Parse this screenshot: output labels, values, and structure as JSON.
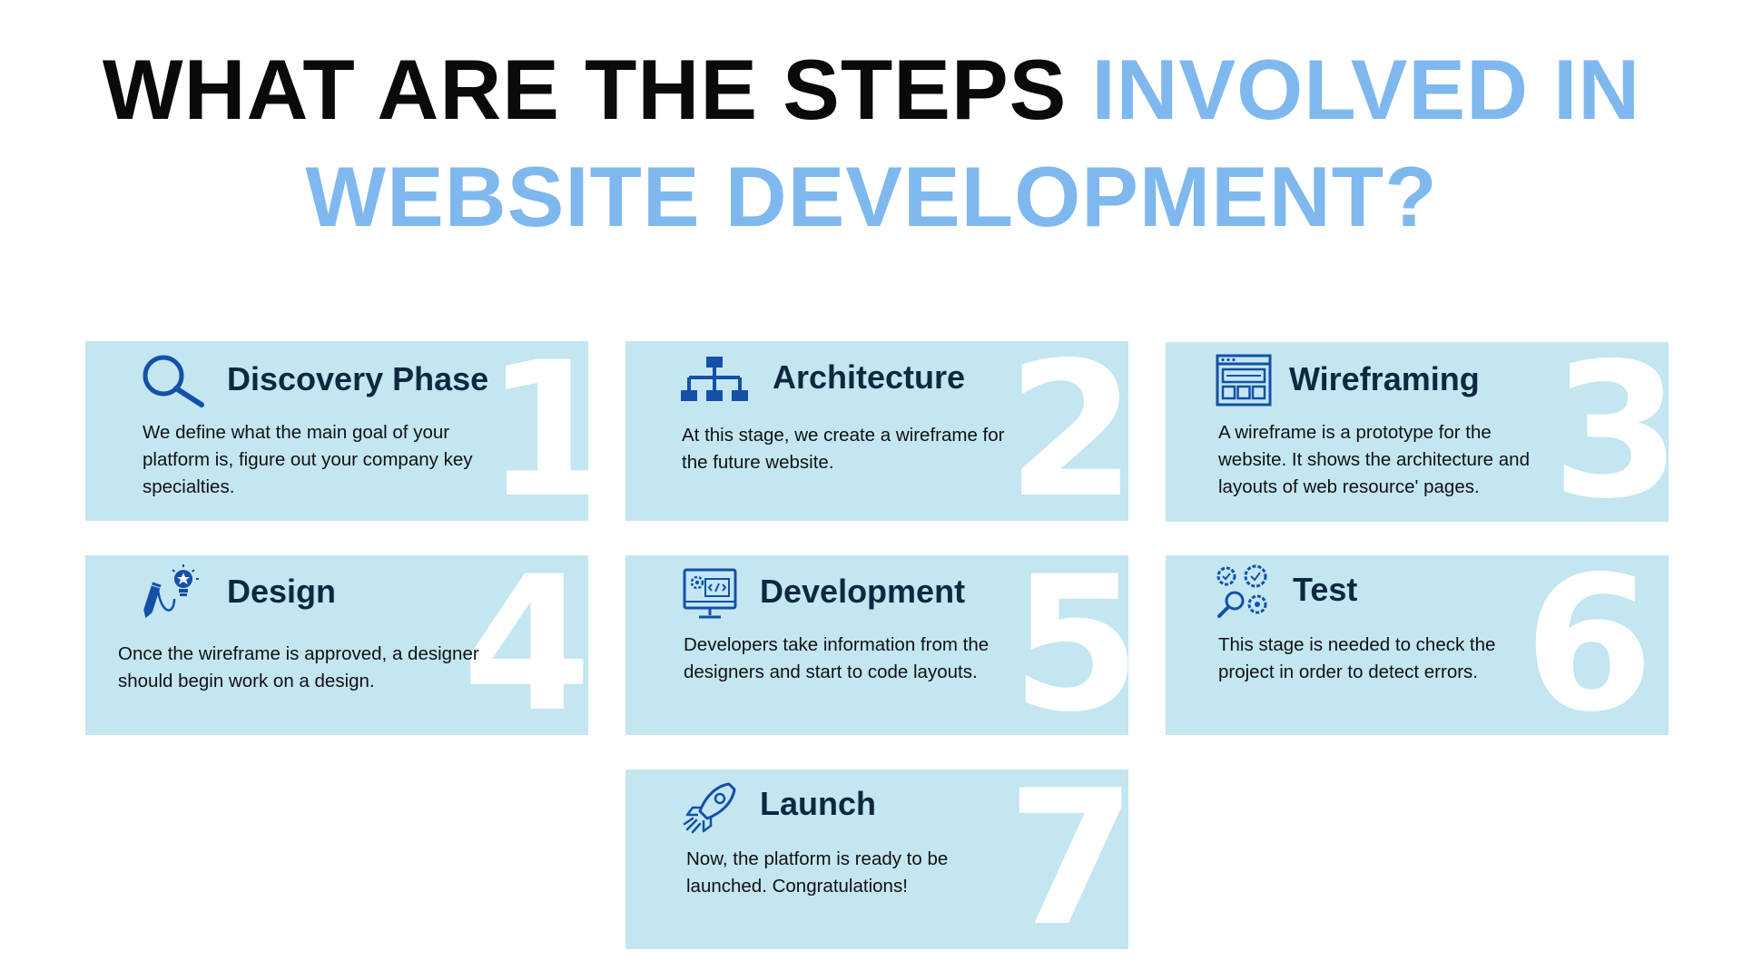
{
  "title": {
    "part1": "WHAT ARE THE STEPS ",
    "part2": "INVOLVED IN WEBSITE DEVELOPMENT?"
  },
  "colors": {
    "card_bg": "#c3e6f1",
    "accent": "#7fb8ee",
    "icon": "#1450a8",
    "heading": "#0f2840"
  },
  "steps": [
    {
      "number": "1",
      "heading": "Discovery Phase",
      "description": "We define what the main goal of your platform is, figure out your company key specialties.",
      "icon": "magnifier-icon"
    },
    {
      "number": "2",
      "heading": "Architecture",
      "description": "At this stage, we create a wireframe for the future website.",
      "icon": "sitemap-icon"
    },
    {
      "number": "3",
      "heading": "Wireframing",
      "description": "A wireframe is a prototype for the website. It shows the architecture and layouts of web resource' pages.",
      "icon": "browser-layout-icon"
    },
    {
      "number": "4",
      "heading": "Design",
      "description": "Once the wireframe is approved, a designer should begin work on a design.",
      "icon": "pen-lightbulb-icon"
    },
    {
      "number": "5",
      "heading": "Development",
      "description": "Developers take information from the designers and start to code layouts.",
      "icon": "code-monitor-icon"
    },
    {
      "number": "6",
      "heading": "Test",
      "description": "This stage is needed to check the project in order to detect errors.",
      "icon": "gears-check-icon"
    },
    {
      "number": "7",
      "heading": "Launch",
      "description": "Now, the platform is ready to be launched. Congratulations!",
      "icon": "rocket-icon"
    }
  ]
}
